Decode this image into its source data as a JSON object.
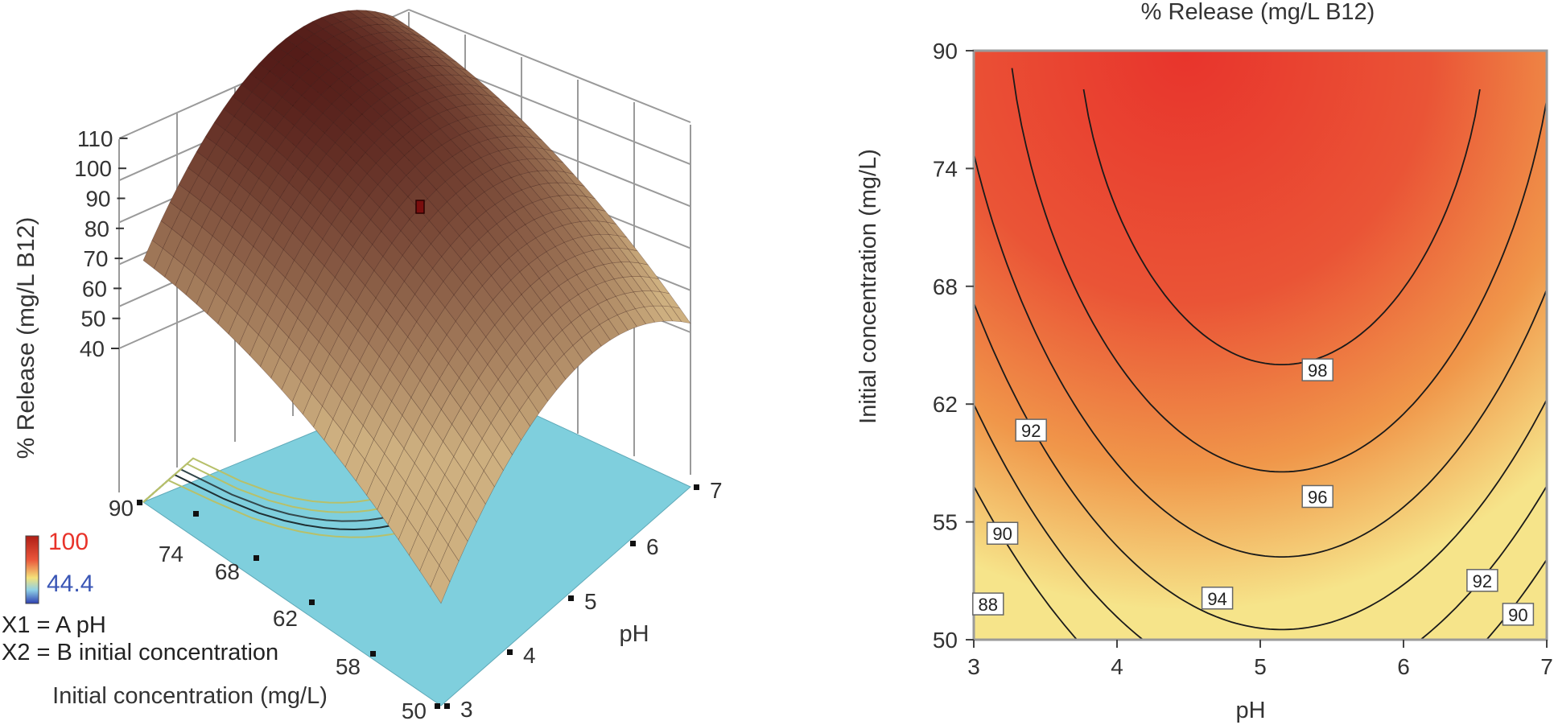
{
  "colors": {
    "surface_low": "#c9a978",
    "surface_high": "#5a1e18",
    "floor": "#7fcfdd",
    "floor_contour": "#b7c06a",
    "contour_line": "#1a1a1a",
    "legend_high_text": "#e8332a",
    "legend_low_text": "#3a56b5",
    "heat_high": "#e8342c",
    "heat_low": "#f6e48a"
  },
  "surface_plot": {
    "z_axis_label": "% Release (mg/L B12)",
    "z_ticks": [
      "40",
      "50",
      "60",
      "70",
      "80",
      "90",
      "100",
      "110"
    ],
    "ph_axis_label": "pH",
    "ph_ticks": [
      "3",
      "4",
      "5",
      "6",
      "7"
    ],
    "conc_axis_label": "Initial concentration (mg/L)",
    "conc_ticks": [
      "50",
      "58",
      "62",
      "68",
      "74",
      "90"
    ],
    "legend": {
      "high": "100",
      "low": "44.4"
    },
    "factors": {
      "x1": "X1 = A pH",
      "x2": "X2 = B initial concentration"
    }
  },
  "chart_data": [
    {
      "type": "surface",
      "title": "",
      "xlabel": "pH",
      "ylabel": "Initial concentration (mg/L)",
      "zlabel": "% Release (mg/L B12)",
      "x_range": [
        3,
        7
      ],
      "y_range": [
        50,
        90
      ],
      "z_range": [
        40,
        110
      ],
      "z_color_range": [
        44.4,
        100
      ],
      "design_point": {
        "x": 5,
        "y": 74,
        "z": 100
      }
    },
    {
      "type": "contour",
      "title": "% Release (mg/L B12)",
      "xlabel": "pH",
      "ylabel": "Initial concentration (mg/L)",
      "x_ticks": [
        "3",
        "4",
        "5",
        "6",
        "7"
      ],
      "y_ticks": [
        "50",
        "55",
        "62",
        "68",
        "74",
        "90"
      ],
      "xlim": [
        3,
        7
      ],
      "ylim": [
        50,
        90
      ],
      "contour_levels": [
        88,
        90,
        92,
        94,
        96,
        98
      ],
      "contour_labels": [
        {
          "text": "98",
          "x": 5.4,
          "y": 68.3
        },
        {
          "text": "96",
          "x": 5.4,
          "y": 59.7
        },
        {
          "text": "94",
          "x": 4.7,
          "y": 52.8
        },
        {
          "text": "92",
          "x": 3.4,
          "y": 64.2
        },
        {
          "text": "92",
          "x": 6.55,
          "y": 54.0
        },
        {
          "text": "90",
          "x": 3.2,
          "y": 57.2
        },
        {
          "text": "90",
          "x": 6.8,
          "y": 51.7
        },
        {
          "text": "88",
          "x": 3.1,
          "y": 52.4
        }
      ]
    }
  ]
}
